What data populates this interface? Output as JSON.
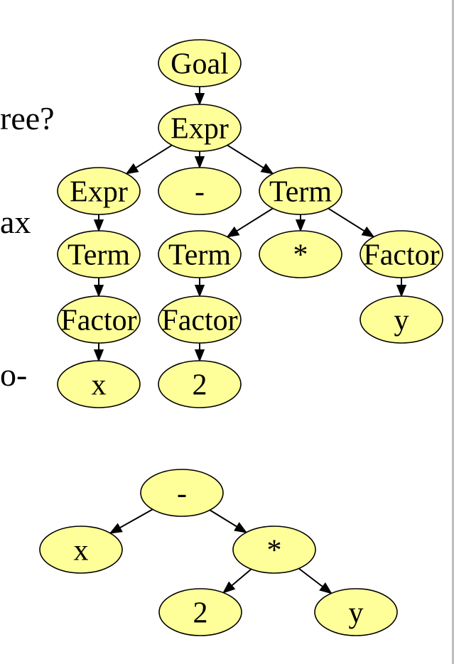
{
  "colors": {
    "node_fill": "#ffff99",
    "stroke": "#000000",
    "background": "#ffffff",
    "edge_bar": "#bdbdbd"
  },
  "fragments": {
    "tree_q": "ree?",
    "ax": "ax",
    "dash": "o-"
  },
  "parse_tree": {
    "nodes": [
      {
        "id": "goal",
        "label": "Goal"
      },
      {
        "id": "expr",
        "label": "Expr"
      },
      {
        "id": "expr2",
        "label": "Expr"
      },
      {
        "id": "minus",
        "label": "-"
      },
      {
        "id": "term",
        "label": "Term"
      },
      {
        "id": "term2",
        "label": "Term"
      },
      {
        "id": "term3",
        "label": "Term"
      },
      {
        "id": "times",
        "label": "*"
      },
      {
        "id": "factor",
        "label": "Factor"
      },
      {
        "id": "factor2",
        "label": "Factor"
      },
      {
        "id": "factor3",
        "label": "Factor"
      },
      {
        "id": "y",
        "label": "y"
      },
      {
        "id": "x",
        "label": "x"
      },
      {
        "id": "two",
        "label": "2"
      }
    ],
    "edges": [
      [
        "goal",
        "expr"
      ],
      [
        "expr",
        "expr2"
      ],
      [
        "expr",
        "minus"
      ],
      [
        "expr",
        "term"
      ],
      [
        "expr2",
        "term2"
      ],
      [
        "term",
        "term3"
      ],
      [
        "term",
        "times"
      ],
      [
        "term",
        "factor"
      ],
      [
        "term2",
        "factor2"
      ],
      [
        "term3",
        "factor3"
      ],
      [
        "factor",
        "y"
      ],
      [
        "factor2",
        "x"
      ],
      [
        "factor3",
        "two"
      ]
    ]
  },
  "ast": {
    "nodes": [
      {
        "id": "minus",
        "label": "-"
      },
      {
        "id": "x",
        "label": "x"
      },
      {
        "id": "times",
        "label": "*"
      },
      {
        "id": "two",
        "label": "2"
      },
      {
        "id": "y",
        "label": "y"
      }
    ],
    "edges": [
      [
        "minus",
        "x"
      ],
      [
        "minus",
        "times"
      ],
      [
        "times",
        "two"
      ],
      [
        "times",
        "y"
      ]
    ]
  }
}
